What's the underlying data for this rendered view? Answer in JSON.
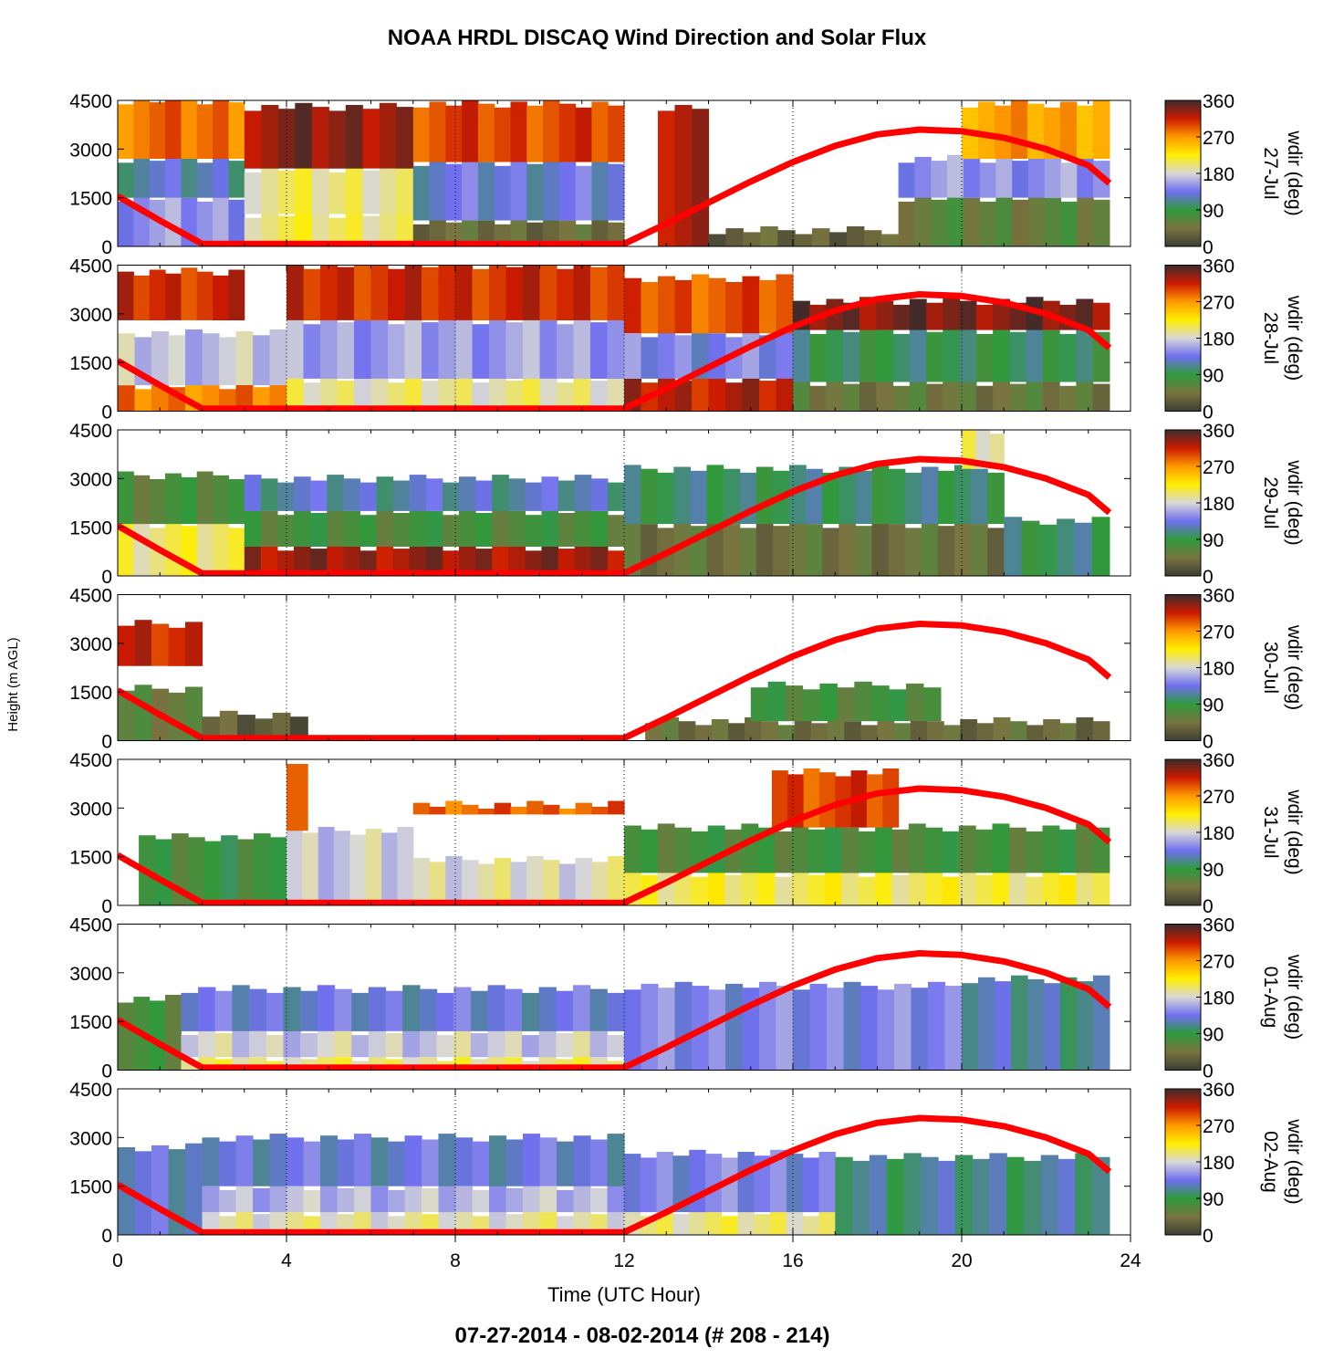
{
  "title": "NOAA HRDL DISCAQ Wind Direction and Solar Flux",
  "subtitle": "07-27-2014 - 08-02-2014   (# 208 - 214)",
  "xlabel": "Time (UTC Hour)",
  "ylabel": "Height (m AGL)",
  "colorbar_label": "wdir (deg)",
  "colors": {
    "solar_line": "#ff0000",
    "colormap": [
      "#3d3d33",
      "#7a7440",
      "#2e9b3c",
      "#6f6ff0",
      "#d8d8d8",
      "#ffee00",
      "#ff9900",
      "#cc1a00",
      "#3d2c2c"
    ]
  },
  "chart_data": {
    "type": "heatmap",
    "x_range": [
      0,
      24
    ],
    "x_ticks": [
      "0",
      "4",
      "8",
      "12",
      "16",
      "20",
      "24"
    ],
    "x_gridlines": [
      4,
      8,
      12,
      16,
      20,
      24
    ],
    "y_range": [
      0,
      4500
    ],
    "y_ticks": [
      "0",
      "1500",
      "3000",
      "4500"
    ],
    "colorbar_range": [
      0,
      360
    ],
    "colorbar_ticks": [
      "0",
      "90",
      "180",
      "270",
      "360"
    ],
    "solar_flux_curve": {
      "x": [
        0,
        1,
        2,
        12,
        13,
        14,
        15,
        16,
        17,
        18,
        19,
        20,
        21,
        22,
        23,
        23.5
      ],
      "y": [
        1550,
        800,
        80,
        80,
        700,
        1350,
        2000,
        2600,
        3100,
        3450,
        3600,
        3550,
        3350,
        3000,
        2500,
        1950
      ]
    },
    "panels": [
      {
        "date": "27-Jul",
        "layers": [
          {
            "x": [
              0.0,
              3.0
            ],
            "y": [
              0,
              1500
            ],
            "deg": 150
          },
          {
            "x": [
              0.0,
              3.0
            ],
            "y": [
              1500,
              2700
            ],
            "deg": 120
          },
          {
            "x": [
              0.0,
              3.0
            ],
            "y": [
              2700,
              4500
            ],
            "deg": 285
          },
          {
            "x": [
              3.0,
              7.0
            ],
            "y": [
              0,
              1000
            ],
            "deg": 205
          },
          {
            "x": [
              3.0,
              7.0
            ],
            "y": [
              1000,
              2400
            ],
            "deg": 200
          },
          {
            "x": [
              3.0,
              7.0
            ],
            "y": [
              2400,
              4300
            ],
            "deg": 335
          },
          {
            "x": [
              7.0,
              12.0
            ],
            "y": [
              0,
              800
            ],
            "deg": 40
          },
          {
            "x": [
              7.0,
              12.0
            ],
            "y": [
              800,
              2600
            ],
            "deg": 130
          },
          {
            "x": [
              7.0,
              12.0
            ],
            "y": [
              2600,
              4400
            ],
            "deg": 300
          },
          {
            "x": [
              12.8,
              14.0
            ],
            "y": [
              0,
              4300
            ],
            "deg": 330
          },
          {
            "x": [
              14.0,
              18.5
            ],
            "y": [
              0,
              500
            ],
            "deg": 30
          },
          {
            "x": [
              18.5,
              23.5
            ],
            "y": [
              0,
              1500
            ],
            "deg": 60
          },
          {
            "x": [
              18.5,
              23.5
            ],
            "y": [
              1500,
              2700
            ],
            "deg": 150
          },
          {
            "x": [
              20.0,
              23.5
            ],
            "y": [
              2700,
              4400
            ],
            "deg": 265
          }
        ]
      },
      {
        "date": "28-Jul",
        "layers": [
          {
            "x": [
              0.0,
              4.0
            ],
            "y": [
              0,
              800
            ],
            "deg": 280
          },
          {
            "x": [
              0.0,
              4.0
            ],
            "y": [
              800,
              2400
            ],
            "deg": 170
          },
          {
            "x": [
              0.0,
              3.0
            ],
            "y": [
              2800,
              4300
            ],
            "deg": 310
          },
          {
            "x": [
              4.0,
              12.0
            ],
            "y": [
              0,
              1000
            ],
            "deg": 195
          },
          {
            "x": [
              4.0,
              12.0
            ],
            "y": [
              1000,
              2800
            ],
            "deg": 155
          },
          {
            "x": [
              4.0,
              12.0
            ],
            "y": [
              2800,
              4500
            ],
            "deg": 310
          },
          {
            "x": [
              12.0,
              16.0
            ],
            "y": [
              0,
              1000
            ],
            "deg": 320
          },
          {
            "x": [
              12.0,
              16.0
            ],
            "y": [
              1000,
              2400
            ],
            "deg": 140
          },
          {
            "x": [
              12.0,
              16.0
            ],
            "y": [
              2400,
              4100
            ],
            "deg": 295
          },
          {
            "x": [
              16.0,
              23.5
            ],
            "y": [
              0,
              900
            ],
            "deg": 50
          },
          {
            "x": [
              16.0,
              23.5
            ],
            "y": [
              900,
              2500
            ],
            "deg": 95
          },
          {
            "x": [
              16.0,
              23.5
            ],
            "y": [
              2500,
              3400
            ],
            "deg": 340
          }
        ]
      },
      {
        "date": "29-Jul",
        "layers": [
          {
            "x": [
              0.0,
              3.0
            ],
            "y": [
              0,
              1600
            ],
            "deg": 205
          },
          {
            "x": [
              0.0,
              3.0
            ],
            "y": [
              1600,
              3100
            ],
            "deg": 70
          },
          {
            "x": [
              3.0,
              12.0
            ],
            "y": [
              0,
              900
            ],
            "deg": 330
          },
          {
            "x": [
              3.0,
              12.0
            ],
            "y": [
              900,
              2000
            ],
            "deg": 75
          },
          {
            "x": [
              3.0,
              12.0
            ],
            "y": [
              2000,
              3000
            ],
            "deg": 120
          },
          {
            "x": [
              12.0,
              21.0
            ],
            "y": [
              0,
              1600
            ],
            "deg": 45
          },
          {
            "x": [
              12.0,
              21.0
            ],
            "y": [
              1600,
              3300
            ],
            "deg": 100
          },
          {
            "x": [
              20.0,
              21.0
            ],
            "y": [
              3300,
              4500
            ],
            "deg": 200
          },
          {
            "x": [
              21.0,
              23.5
            ],
            "y": [
              0,
              1700
            ],
            "deg": 100
          }
        ]
      },
      {
        "date": "30-Jul",
        "layers": [
          {
            "x": [
              0.0,
              2.0
            ],
            "y": [
              0,
              1600
            ],
            "deg": 55
          },
          {
            "x": [
              0.0,
              2.0
            ],
            "y": [
              2300,
              3600
            ],
            "deg": 310
          },
          {
            "x": [
              2.0,
              4.5
            ],
            "y": [
              0,
              800
            ],
            "deg": 25
          },
          {
            "x": [
              12.5,
              23.5
            ],
            "y": [
              0,
              600
            ],
            "deg": 40
          },
          {
            "x": [
              15.0,
              19.5
            ],
            "y": [
              600,
              1700
            ],
            "deg": 75
          }
        ]
      },
      {
        "date": "31-Jul",
        "layers": [
          {
            "x": [
              0.5,
              4.0
            ],
            "y": [
              0,
              2100
            ],
            "deg": 80
          },
          {
            "x": [
              4.0,
              7.0
            ],
            "y": [
              0,
              2300
            ],
            "deg": 175
          },
          {
            "x": [
              4.0,
              4.5
            ],
            "y": [
              2300,
              4300
            ],
            "deg": 290
          },
          {
            "x": [
              7.0,
              12.0
            ],
            "y": [
              0,
              1400
            ],
            "deg": 185
          },
          {
            "x": [
              7.0,
              12.0
            ],
            "y": [
              2800,
              3100
            ],
            "deg": 290
          },
          {
            "x": [
              12.0,
              23.5
            ],
            "y": [
              0,
              1000
            ],
            "deg": 210
          },
          {
            "x": [
              12.0,
              23.5
            ],
            "y": [
              1000,
              2400
            ],
            "deg": 75
          },
          {
            "x": [
              15.5,
              18.5
            ],
            "y": [
              2400,
              4100
            ],
            "deg": 300
          }
        ]
      },
      {
        "date": "01-Aug",
        "layers": [
          {
            "x": [
              0.0,
              1.5
            ],
            "y": [
              0,
              2200
            ],
            "deg": 70
          },
          {
            "x": [
              1.5,
              12.0
            ],
            "y": [
              0,
              400
            ],
            "deg": 200
          },
          {
            "x": [
              1.5,
              12.0
            ],
            "y": [
              400,
              1200
            ],
            "deg": 175
          },
          {
            "x": [
              1.5,
              12.0
            ],
            "y": [
              1200,
              2500
            ],
            "deg": 130
          },
          {
            "x": [
              12.0,
              20.0
            ],
            "y": [
              0,
              2600
            ],
            "deg": 140
          },
          {
            "x": [
              20.0,
              23.5
            ],
            "y": [
              0,
              2800
            ],
            "deg": 115
          }
        ]
      },
      {
        "date": "02-Aug",
        "layers": [
          {
            "x": [
              0.0,
              2.0
            ],
            "y": [
              0,
              2700
            ],
            "deg": 130
          },
          {
            "x": [
              2.0,
              12.0
            ],
            "y": [
              0,
              700
            ],
            "deg": 190
          },
          {
            "x": [
              2.0,
              12.0
            ],
            "y": [
              700,
              1500
            ],
            "deg": 165
          },
          {
            "x": [
              2.0,
              12.0
            ],
            "y": [
              1500,
              3000
            ],
            "deg": 130
          },
          {
            "x": [
              12.0,
              17.0
            ],
            "y": [
              0,
              700
            ],
            "deg": 200
          },
          {
            "x": [
              12.0,
              17.0
            ],
            "y": [
              700,
              2500
            ],
            "deg": 140
          },
          {
            "x": [
              17.0,
              23.5
            ],
            "y": [
              0,
              2400
            ],
            "deg": 110
          }
        ]
      }
    ]
  }
}
